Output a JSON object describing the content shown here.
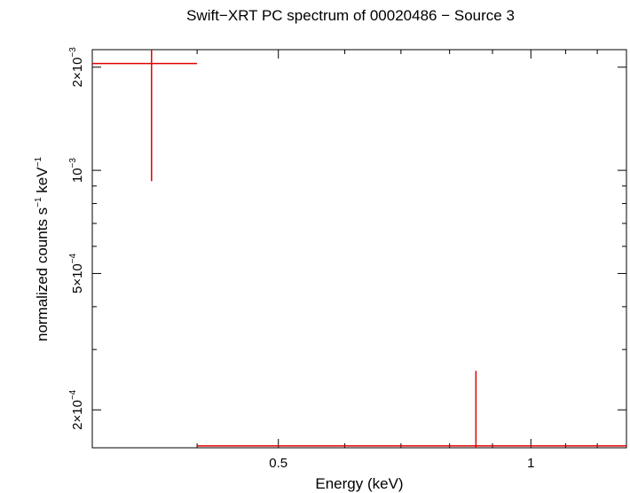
{
  "chart_data": {
    "type": "scatter",
    "title": "Swift−XRT PC spectrum of 00020486 − Source 3",
    "xlabel": "Energy (keV)",
    "ylabel": {
      "base": "normalized counts s",
      "exp1": "−1",
      "mid": " keV",
      "exp2": "−1"
    },
    "xscale": "log",
    "yscale": "log",
    "xlim": [
      0.3,
      1.3
    ],
    "ylim": [
      0.000155,
      0.00225
    ],
    "x_ticks": [
      {
        "value": 0.5,
        "label": "0.5"
      },
      {
        "value": 1.0,
        "label": "1"
      }
    ],
    "y_ticks": [
      {
        "value": 0.0002,
        "mantissa": "2×10",
        "exp": "−4"
      },
      {
        "value": 0.0005,
        "mantissa": "5×10",
        "exp": "−4"
      },
      {
        "value": 0.001,
        "mantissa": "10",
        "exp": "−3"
      },
      {
        "value": 0.002,
        "mantissa": "2×10",
        "exp": "−3"
      }
    ],
    "series": [
      {
        "color": "#e00000",
        "points": [
          {
            "x_lo": 0.3,
            "x_hi": 0.4,
            "x": 0.353,
            "y": 0.00205,
            "y_lo": 0.00093,
            "y_hi": 0.00225
          },
          {
            "x_lo": 0.4,
            "x_hi": 1.3,
            "x": 0.86,
            "y": 0.000157,
            "y_lo": 0.000155,
            "y_hi": 0.00026
          }
        ]
      }
    ]
  }
}
